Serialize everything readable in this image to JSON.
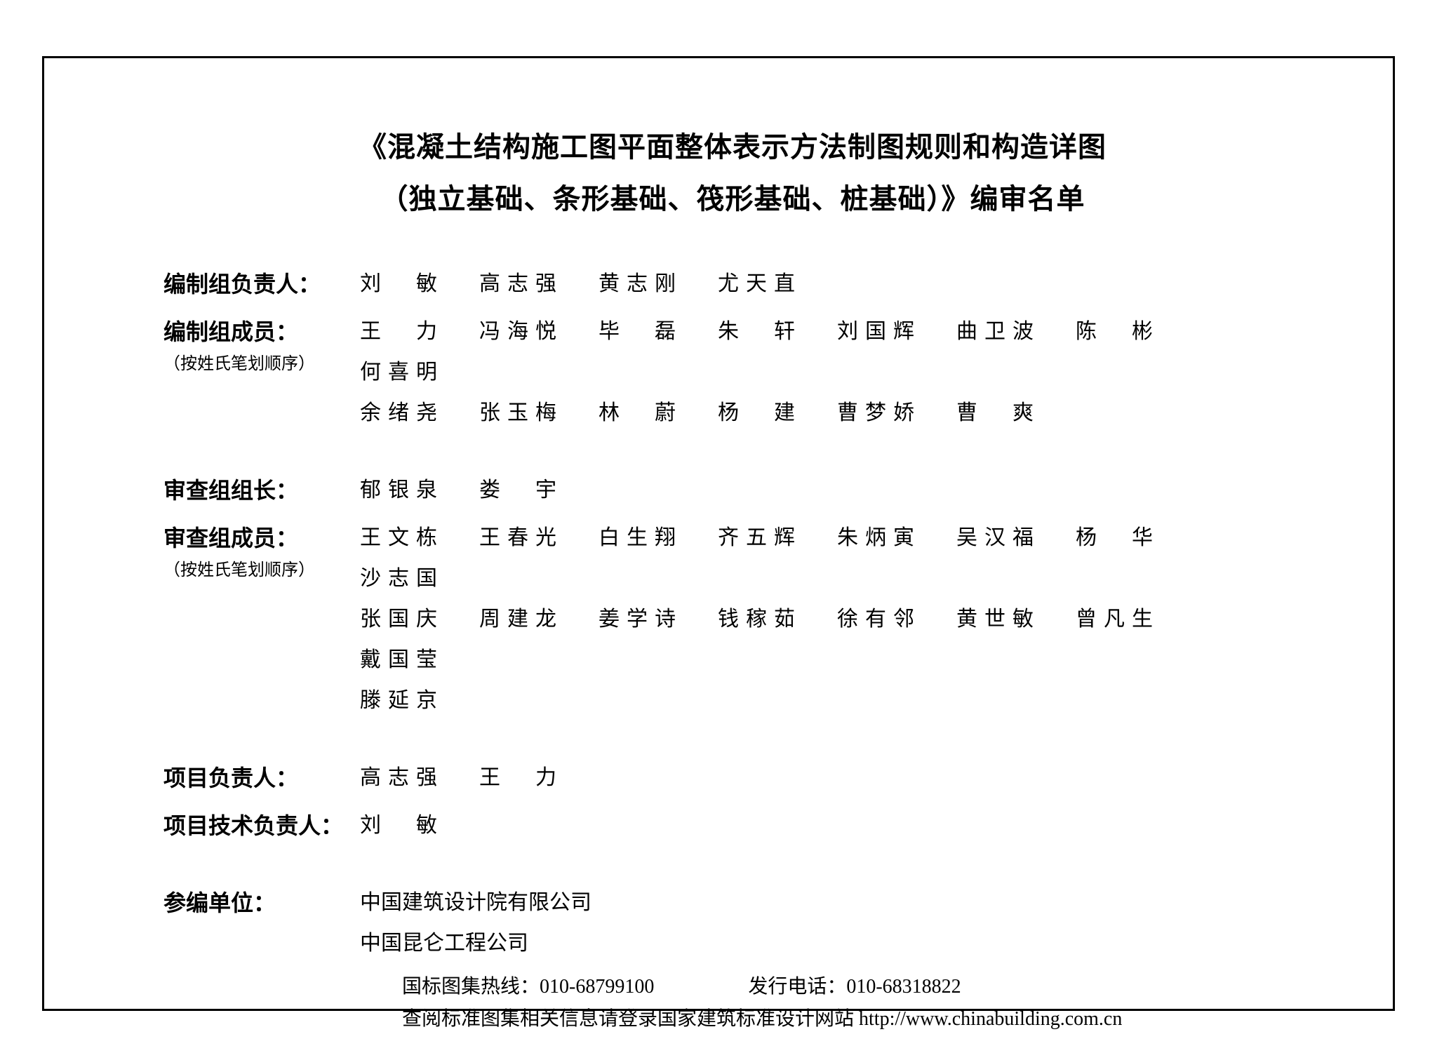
{
  "title": {
    "line1": "《混凝土结构施工图平面整体表示方法制图规则和构造详图",
    "line2": "（独立基础、条形基础、筏形基础、桩基础）》编审名单"
  },
  "sections": {
    "compile_leaders": {
      "label": "编制组负责人：",
      "names": [
        "刘　敏",
        "高志强",
        "黄志刚",
        "尤天直"
      ]
    },
    "compile_members": {
      "label": "编制组成员：",
      "sublabel": "（按姓氏笔划顺序）",
      "rows": [
        [
          "王　力",
          "冯海悦",
          "毕　磊",
          "朱　轩",
          "刘国辉",
          "曲卫波",
          "陈　彬",
          "何喜明"
        ],
        [
          "余绪尧",
          "张玉梅",
          "林　蔚",
          "杨　建",
          "曹梦娇",
          "曹　爽"
        ]
      ]
    },
    "review_leaders": {
      "label": "审查组组长：",
      "names": [
        "郁银泉",
        "娄　宇"
      ]
    },
    "review_members": {
      "label": "审查组成员：",
      "sublabel": "（按姓氏笔划顺序）",
      "rows": [
        [
          "王文栋",
          "王春光",
          "白生翔",
          "齐五辉",
          "朱炳寅",
          "吴汉福",
          "杨　华",
          "沙志国"
        ],
        [
          "张国庆",
          "周建龙",
          "姜学诗",
          "钱稼茹",
          "徐有邻",
          "黄世敏",
          "曾凡生",
          "戴国莹"
        ],
        [
          "滕延京"
        ]
      ]
    },
    "project_leaders": {
      "label": "项目负责人：",
      "names": [
        "高志强",
        "王　力"
      ]
    },
    "project_tech_leader": {
      "label": "项目技术负责人：",
      "names": [
        "刘　敏"
      ]
    },
    "participating_orgs": {
      "label": "参编单位：",
      "orgs": [
        "中国建筑设计院有限公司",
        "中国昆仑工程公司"
      ]
    }
  },
  "footer": {
    "hotline_label": "国标图集热线：",
    "hotline_value": "010-68799100",
    "issue_label": "发行电话：",
    "issue_value": "010-68318822",
    "website_label": "查阅标准图集相关信息请登录国家建筑标准设计网站 ",
    "website_value": "http://www.chinabuilding.com.cn"
  }
}
